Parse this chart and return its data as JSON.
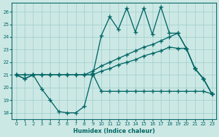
{
  "xlabel": "Humidex (Indice chaleur)",
  "background_color": "#cce8e4",
  "grid_color": "#99cccc",
  "line_color": "#006666",
  "xlim": [
    -0.5,
    23.5
  ],
  "ylim": [
    17.5,
    26.7
  ],
  "yticks": [
    18,
    19,
    20,
    21,
    22,
    23,
    24,
    25,
    26
  ],
  "xticks": [
    0,
    1,
    2,
    3,
    4,
    5,
    6,
    7,
    8,
    9,
    10,
    11,
    12,
    13,
    14,
    15,
    16,
    17,
    18,
    19,
    20,
    21,
    22,
    23
  ],
  "series": [
    {
      "x": [
        0,
        1,
        2,
        3,
        4,
        5,
        6,
        7,
        8,
        9,
        10,
        11,
        12,
        13,
        14,
        15,
        16,
        17,
        18,
        19,
        20,
        21,
        22,
        23
      ],
      "y": [
        21.0,
        20.7,
        21.0,
        21.0,
        21.0,
        21.0,
        21.0,
        21.0,
        21.0,
        21.0,
        24.1,
        25.6,
        24.6,
        26.3,
        24.4,
        26.3,
        24.2,
        26.4,
        24.3,
        24.3,
        23.1,
        21.5,
        20.7,
        19.5
      ],
      "marker": "+",
      "markersize": 4,
      "linewidth": 1.0
    },
    {
      "x": [
        0,
        1,
        2,
        3,
        4,
        5,
        6,
        7,
        8,
        9,
        10,
        11,
        12,
        13,
        14,
        15,
        16,
        17,
        18,
        19,
        20,
        21,
        22,
        23
      ],
      "y": [
        21.0,
        21.0,
        21.0,
        21.0,
        21.0,
        21.0,
        21.0,
        21.0,
        21.0,
        21.3,
        21.7,
        22.0,
        22.3,
        22.6,
        22.9,
        23.2,
        23.4,
        23.7,
        24.0,
        24.3,
        23.1,
        21.5,
        20.7,
        19.5
      ],
      "marker": "+",
      "markersize": 4,
      "linewidth": 1.0
    },
    {
      "x": [
        0,
        1,
        2,
        3,
        4,
        5,
        6,
        7,
        8,
        9,
        10,
        11,
        12,
        13,
        14,
        15,
        16,
        17,
        18,
        19,
        20,
        21,
        22,
        23
      ],
      "y": [
        21.0,
        21.0,
        21.0,
        21.0,
        21.0,
        21.0,
        21.0,
        21.0,
        21.0,
        21.0,
        21.3,
        21.5,
        21.8,
        22.0,
        22.2,
        22.5,
        22.7,
        22.9,
        23.2,
        23.1,
        23.1,
        21.5,
        20.7,
        19.5
      ],
      "marker": "+",
      "markersize": 4,
      "linewidth": 1.0
    },
    {
      "x": [
        0,
        1,
        2,
        3,
        4,
        5,
        6,
        7,
        8,
        9,
        10,
        11,
        12,
        13,
        14,
        15,
        16,
        17,
        18,
        19,
        20,
        21,
        22,
        23
      ],
      "y": [
        21.0,
        20.7,
        21.0,
        19.9,
        19.0,
        18.1,
        18.0,
        18.0,
        18.5,
        21.1,
        19.7,
        19.7,
        19.7,
        19.7,
        19.7,
        19.7,
        19.7,
        19.7,
        19.7,
        19.7,
        19.7,
        19.7,
        19.7,
        19.5
      ],
      "marker": "+",
      "markersize": 4,
      "linewidth": 1.0
    }
  ]
}
